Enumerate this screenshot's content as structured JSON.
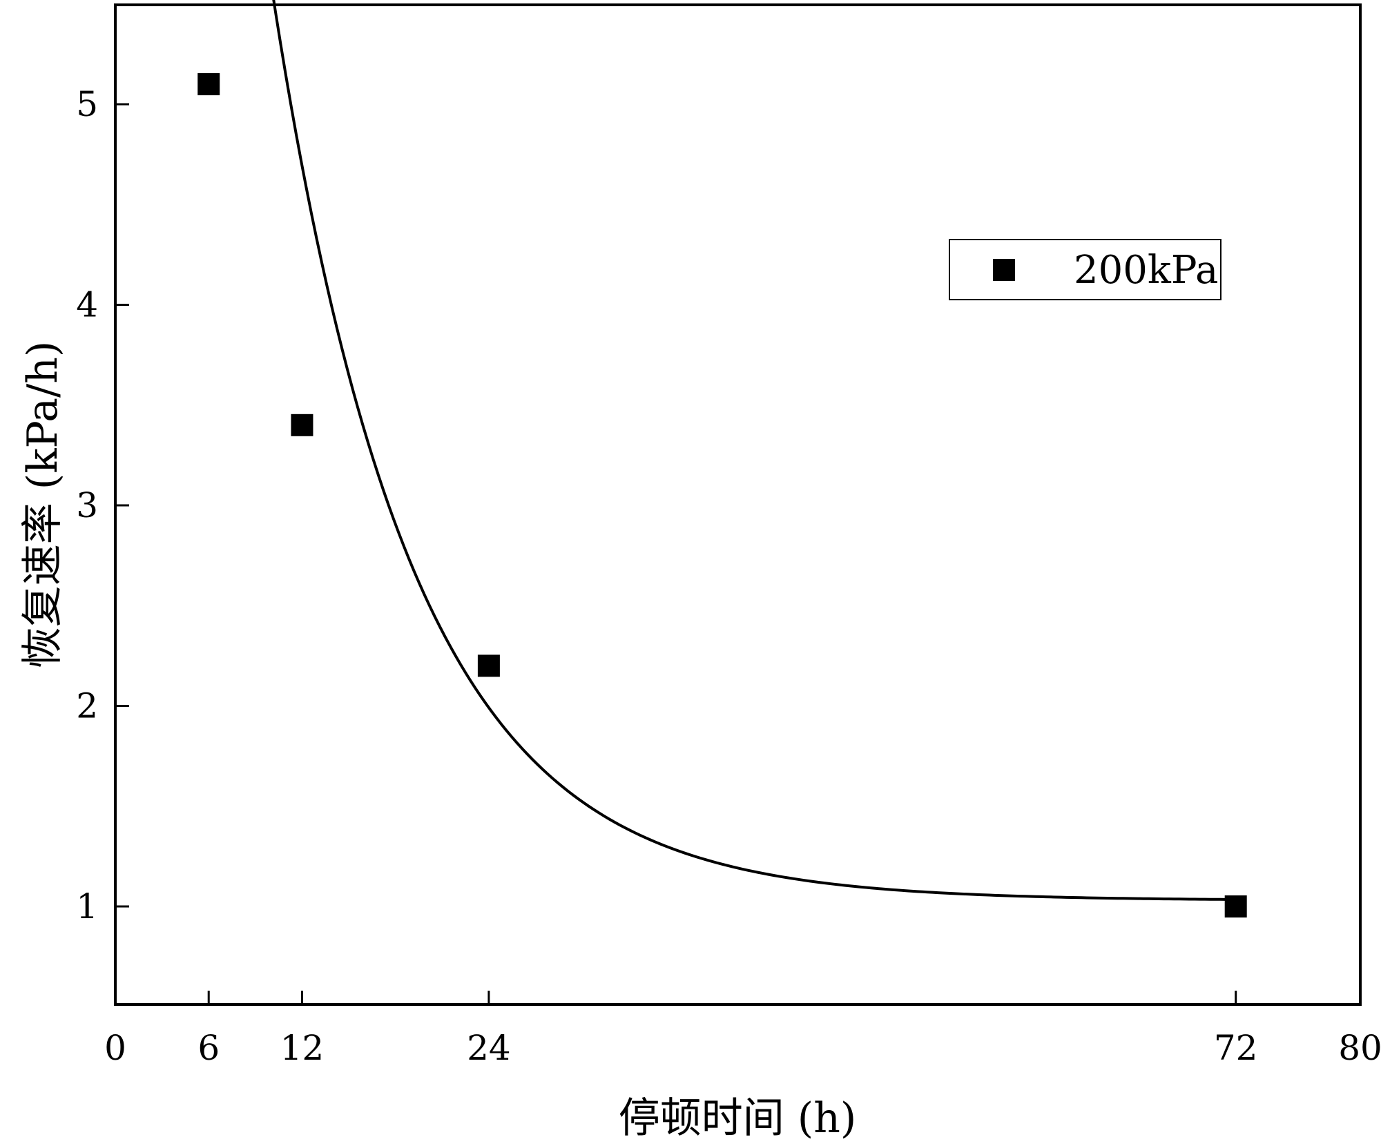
{
  "chart_data": {
    "type": "scatter",
    "xlabel": "停顿时间 (h)",
    "ylabel": "恢复速率 (kPa/h)",
    "xlim": [
      0,
      80
    ],
    "ylim": [
      0.5,
      5.5
    ],
    "x_ticks": [
      0,
      6,
      12,
      24,
      72,
      80
    ],
    "y_ticks": [
      1,
      2,
      3,
      4,
      5
    ],
    "grid": false,
    "legend_position": "top-right",
    "series": [
      {
        "name": "200kPa",
        "marker": "square",
        "color": "#000000",
        "points": [
          {
            "x": 6,
            "y": 5.1
          },
          {
            "x": 12,
            "y": 3.4
          },
          {
            "x": 24,
            "y": 2.2
          },
          {
            "x": 72,
            "y": 1.0
          }
        ]
      }
    ],
    "fit_curve": {
      "kind": "exponential-decay",
      "color": "#000000",
      "x_range": [
        6,
        72
      ],
      "y0": 1.03,
      "A": 7.15,
      "t": 8.97
    }
  }
}
